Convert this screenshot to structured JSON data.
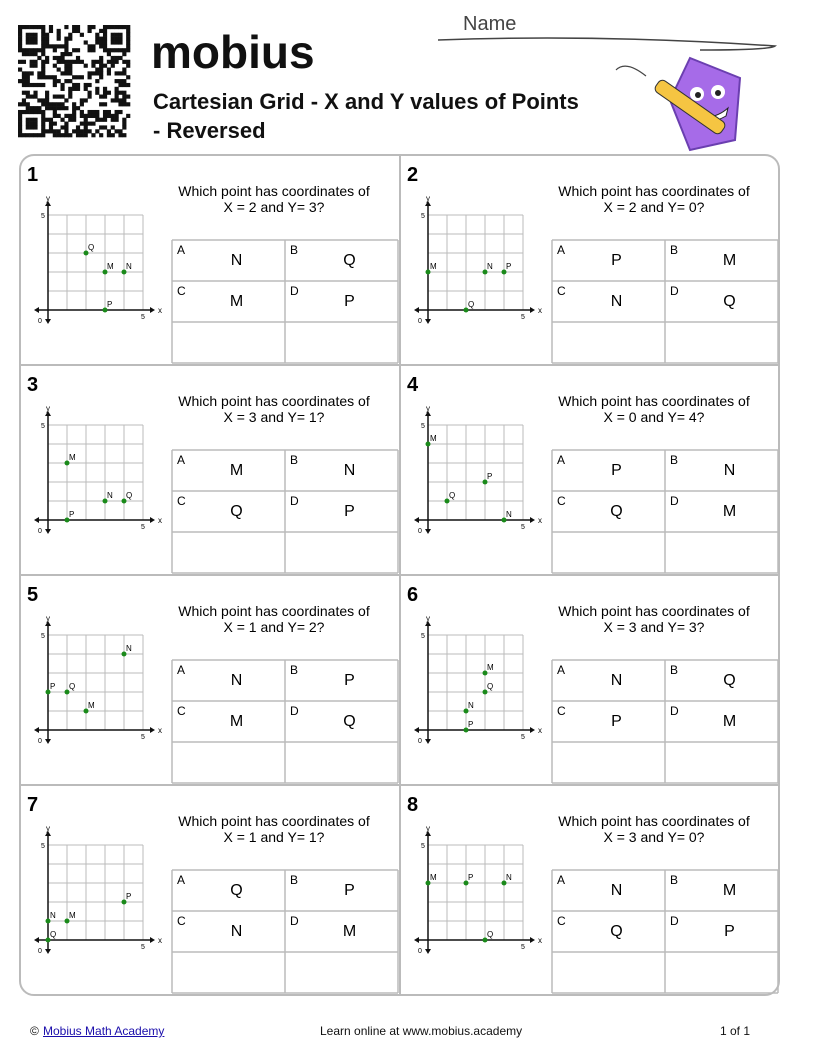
{
  "header": {
    "brand": "mobius",
    "title_lines": [
      "Cartesian Grid - X and Y values of Points",
      "- Reversed"
    ],
    "name_label": "Name"
  },
  "problems": [
    {
      "number": "1",
      "question": [
        "Which point has coordinates of",
        "X = 2 and Y= 3?"
      ],
      "options": [
        {
          "letter": "A",
          "answer": "N"
        },
        {
          "letter": "B",
          "answer": "Q"
        },
        {
          "letter": "C",
          "answer": "M"
        },
        {
          "letter": "D",
          "answer": "P"
        }
      ],
      "graph": {
        "x_label": "x",
        "y_label": "y",
        "origin": 0,
        "max": 5,
        "points": [
          {
            "label": "Q",
            "x": 2,
            "y": 3
          },
          {
            "label": "M",
            "x": 3,
            "y": 2
          },
          {
            "label": "N",
            "x": 4,
            "y": 2
          },
          {
            "label": "P",
            "x": 3,
            "y": 0
          }
        ]
      }
    },
    {
      "number": "2",
      "question": [
        "Which point has coordinates of",
        "X = 2 and Y= 0?"
      ],
      "options": [
        {
          "letter": "A",
          "answer": "P"
        },
        {
          "letter": "B",
          "answer": "M"
        },
        {
          "letter": "C",
          "answer": "N"
        },
        {
          "letter": "D",
          "answer": "Q"
        }
      ],
      "graph": {
        "x_label": "x",
        "y_label": "y",
        "origin": 0,
        "max": 5,
        "points": [
          {
            "label": "M",
            "x": 0,
            "y": 2
          },
          {
            "label": "N",
            "x": 3,
            "y": 2
          },
          {
            "label": "P",
            "x": 4,
            "y": 2
          },
          {
            "label": "Q",
            "x": 2,
            "y": 0
          }
        ]
      }
    },
    {
      "number": "3",
      "question": [
        "Which point has coordinates of",
        "X = 3 and Y= 1?"
      ],
      "options": [
        {
          "letter": "A",
          "answer": "M"
        },
        {
          "letter": "B",
          "answer": "N"
        },
        {
          "letter": "C",
          "answer": "Q"
        },
        {
          "letter": "D",
          "answer": "P"
        }
      ],
      "graph": {
        "x_label": "x",
        "y_label": "y",
        "origin": 0,
        "max": 5,
        "points": [
          {
            "label": "M",
            "x": 1,
            "y": 3
          },
          {
            "label": "N",
            "x": 3,
            "y": 1
          },
          {
            "label": "Q",
            "x": 4,
            "y": 1
          },
          {
            "label": "P",
            "x": 1,
            "y": 0
          }
        ]
      }
    },
    {
      "number": "4",
      "question": [
        "Which point has coordinates of",
        "X = 0 and Y= 4?"
      ],
      "options": [
        {
          "letter": "A",
          "answer": "P"
        },
        {
          "letter": "B",
          "answer": "N"
        },
        {
          "letter": "C",
          "answer": "Q"
        },
        {
          "letter": "D",
          "answer": "M"
        }
      ],
      "graph": {
        "x_label": "x",
        "y_label": "y",
        "origin": 0,
        "max": 5,
        "points": [
          {
            "label": "M",
            "x": 0,
            "y": 4
          },
          {
            "label": "P",
            "x": 3,
            "y": 2
          },
          {
            "label": "Q",
            "x": 1,
            "y": 1
          },
          {
            "label": "N",
            "x": 4,
            "y": 0
          }
        ]
      }
    },
    {
      "number": "5",
      "question": [
        "Which point has coordinates of",
        "X = 1 and Y= 2?"
      ],
      "options": [
        {
          "letter": "A",
          "answer": "N"
        },
        {
          "letter": "B",
          "answer": "P"
        },
        {
          "letter": "C",
          "answer": "M"
        },
        {
          "letter": "D",
          "answer": "Q"
        }
      ],
      "graph": {
        "x_label": "x",
        "y_label": "y",
        "origin": 0,
        "max": 5,
        "points": [
          {
            "label": "N",
            "x": 4,
            "y": 4
          },
          {
            "label": "P",
            "x": 0,
            "y": 2
          },
          {
            "label": "Q",
            "x": 1,
            "y": 2
          },
          {
            "label": "M",
            "x": 2,
            "y": 1
          }
        ]
      }
    },
    {
      "number": "6",
      "question": [
        "Which point has coordinates of",
        "X = 3 and Y= 3?"
      ],
      "options": [
        {
          "letter": "A",
          "answer": "N"
        },
        {
          "letter": "B",
          "answer": "Q"
        },
        {
          "letter": "C",
          "answer": "P"
        },
        {
          "letter": "D",
          "answer": "M"
        }
      ],
      "graph": {
        "x_label": "x",
        "y_label": "y",
        "origin": 0,
        "max": 5,
        "points": [
          {
            "label": "M",
            "x": 3,
            "y": 3
          },
          {
            "label": "Q",
            "x": 3,
            "y": 2
          },
          {
            "label": "N",
            "x": 2,
            "y": 1
          },
          {
            "label": "P",
            "x": 2,
            "y": 0
          }
        ]
      }
    },
    {
      "number": "7",
      "question": [
        "Which point has coordinates of",
        "X = 1 and Y= 1?"
      ],
      "options": [
        {
          "letter": "A",
          "answer": "Q"
        },
        {
          "letter": "B",
          "answer": "P"
        },
        {
          "letter": "C",
          "answer": "N"
        },
        {
          "letter": "D",
          "answer": "M"
        }
      ],
      "graph": {
        "x_label": "x",
        "y_label": "y",
        "origin": 0,
        "max": 5,
        "points": [
          {
            "label": "P",
            "x": 4,
            "y": 2
          },
          {
            "label": "N",
            "x": 0,
            "y": 1
          },
          {
            "label": "M",
            "x": 1,
            "y": 1
          },
          {
            "label": "Q",
            "x": 0,
            "y": 0
          }
        ]
      }
    },
    {
      "number": "8",
      "question": [
        "Which point has coordinates of",
        "X = 3 and Y= 0?"
      ],
      "options": [
        {
          "letter": "A",
          "answer": "N"
        },
        {
          "letter": "B",
          "answer": "M"
        },
        {
          "letter": "C",
          "answer": "Q"
        },
        {
          "letter": "D",
          "answer": "P"
        }
      ],
      "graph": {
        "x_label": "x",
        "y_label": "y",
        "origin": 0,
        "max": 5,
        "points": [
          {
            "label": "M",
            "x": 0,
            "y": 3
          },
          {
            "label": "P",
            "x": 2,
            "y": 3
          },
          {
            "label": "N",
            "x": 4,
            "y": 3
          },
          {
            "label": "Q",
            "x": 3,
            "y": 0
          }
        ]
      }
    }
  ],
  "footer": {
    "copyright": "©",
    "link": "Mobius Math Academy",
    "center": "Learn online at www.mobius.academy",
    "page": "1 of 1"
  }
}
